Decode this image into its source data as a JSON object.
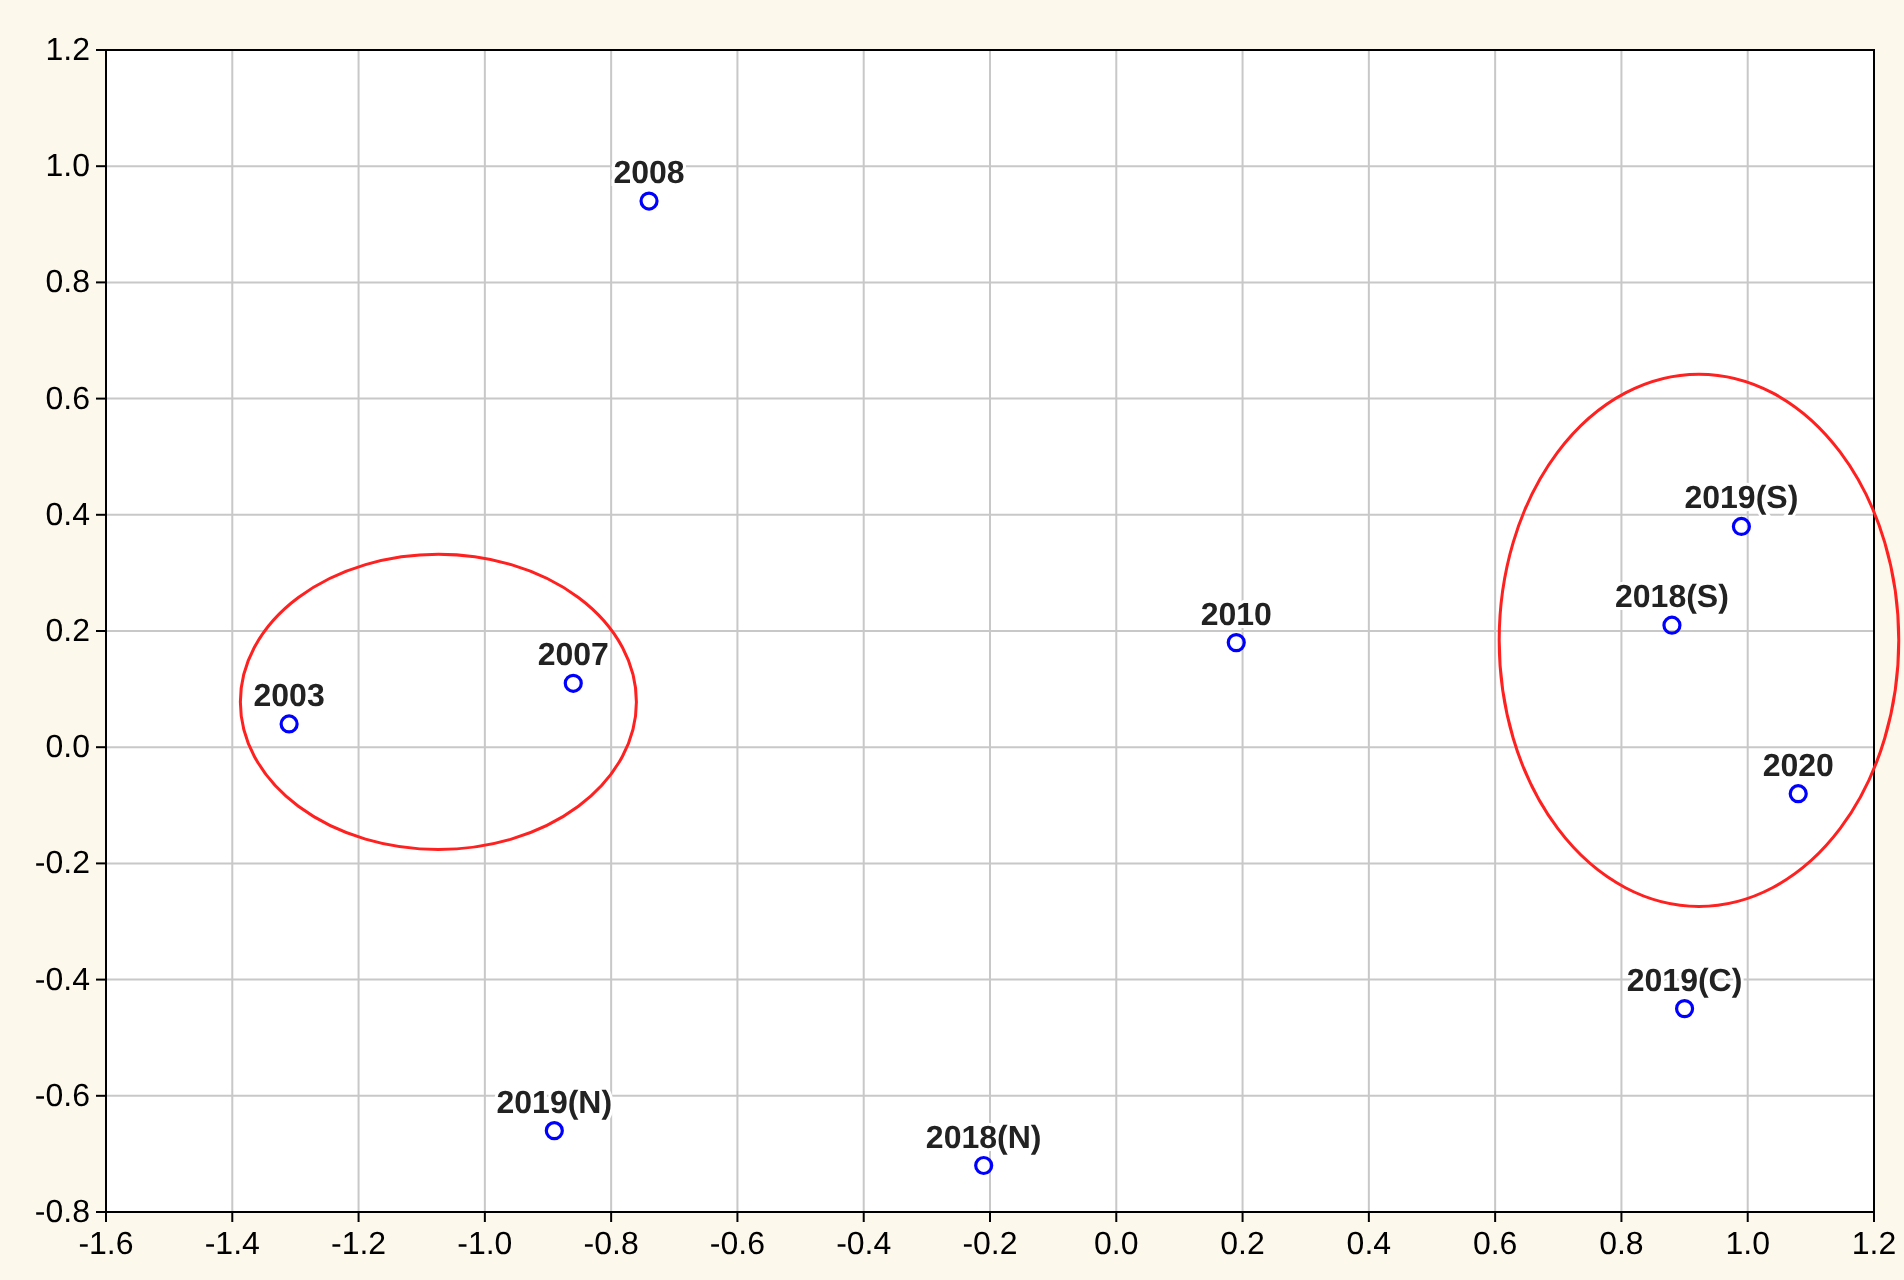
{
  "chart_data": {
    "type": "scatter",
    "marker": "circle",
    "grid": true,
    "xlim": [
      -1.6,
      1.2
    ],
    "ylim": [
      -0.8,
      1.2
    ],
    "xticks": [
      -1.6,
      -1.4,
      -1.2,
      {
        "value": -1.0,
        "label": "-1.0"
      },
      -0.8,
      -0.6,
      -0.4,
      -0.2,
      {
        "value": 0,
        "label": "0.0"
      },
      0.2,
      0.4,
      0.6,
      0.8,
      {
        "value": 1.0,
        "label": "1.0"
      },
      1.2
    ],
    "yticks": [
      -0.8,
      -0.6,
      -0.4,
      -0.2,
      {
        "value": 0,
        "label": "0.0"
      },
      0.2,
      0.4,
      0.6,
      0.8,
      {
        "value": 1.0,
        "label": "1.0"
      },
      1.2
    ],
    "series": [
      {
        "name": "2003",
        "color": "#0000ff",
        "x": [
          -1.31
        ],
        "values": [
          0.04
        ]
      },
      {
        "name": "2007",
        "color": "#0000ff",
        "x": [
          -0.86
        ],
        "values": [
          0.11
        ]
      },
      {
        "name": "2008",
        "color": "#0000ff",
        "x": [
          -0.74
        ],
        "values": [
          0.94
        ]
      },
      {
        "name": "2019(N)",
        "color": "#0000ff",
        "x": [
          -0.89
        ],
        "values": [
          -0.66
        ]
      },
      {
        "name": "2018(N)",
        "color": "#0000ff",
        "x": [
          -0.21
        ],
        "values": [
          -0.72
        ]
      },
      {
        "name": "2010",
        "color": "#0000ff",
        "x": [
          0.19
        ],
        "values": [
          0.18
        ]
      },
      {
        "name": "2019(S)",
        "color": "#0000ff",
        "x": [
          0.99
        ],
        "values": [
          0.38
        ]
      },
      {
        "name": "2018(S)",
        "color": "#0000ff",
        "x": [
          0.88
        ],
        "values": [
          0.21
        ]
      },
      {
        "name": "2020",
        "color": "#0000ff",
        "x": [
          1.08
        ],
        "values": [
          -0.08
        ]
      },
      {
        "name": "2019(C)",
        "color": "#0000ff",
        "x": [
          0.9
        ],
        "values": [
          -0.45
        ]
      }
    ]
  }
}
